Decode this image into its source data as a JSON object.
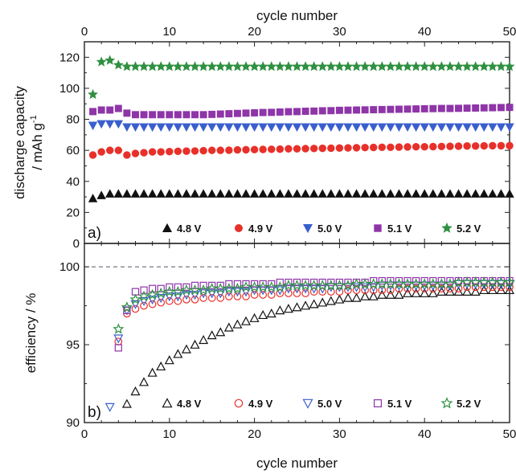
{
  "chart_data": [
    {
      "panel": "a)",
      "type": "scatter",
      "title": "",
      "xlabel_top": "cycle number",
      "ylabel": "discharge capacity",
      "ylabel_unit": "/ mAh g",
      "ylabel_unit_sup": "-1",
      "xlim": [
        0,
        50
      ],
      "ylim": [
        0,
        130
      ],
      "xticks": [
        0,
        10,
        20,
        30,
        40,
        50
      ],
      "yticks": [
        0,
        20,
        40,
        60,
        80,
        100,
        120
      ],
      "legend_position": "bottom",
      "series": [
        {
          "name": "4.8 V",
          "marker": "triangle-up",
          "filled": true,
          "color": "#111111",
          "values": [
            29,
            31,
            32,
            32,
            32,
            32,
            32,
            32,
            32,
            32,
            32,
            32,
            32,
            32,
            32,
            32,
            32,
            32,
            32,
            32,
            32,
            32,
            32,
            32,
            32,
            32,
            32,
            32,
            32,
            32,
            32,
            32,
            32,
            32,
            32,
            32,
            32,
            32,
            32,
            32,
            32,
            32,
            32,
            32,
            32,
            32,
            32,
            32,
            32,
            32
          ]
        },
        {
          "name": "4.9 V",
          "marker": "circle",
          "filled": true,
          "color": "#e8302a",
          "values": [
            57,
            59,
            60,
            60,
            57,
            58,
            58.5,
            59,
            59,
            59.2,
            59.4,
            59.5,
            59.6,
            59.8,
            60,
            60,
            60.1,
            60.3,
            60.4,
            60.5,
            60.6,
            60.7,
            60.8,
            61,
            61,
            61.1,
            61.2,
            61.3,
            61.4,
            61.5,
            61.6,
            61.7,
            61.8,
            61.9,
            62,
            62,
            62.1,
            62.2,
            62.3,
            62.3,
            62.4,
            62.5,
            62.6,
            62.7,
            62.8,
            62.8,
            62.9,
            63,
            63,
            63
          ]
        },
        {
          "name": "5.0 V",
          "marker": "triangle-down",
          "filled": true,
          "color": "#3a5fcd",
          "values": [
            76,
            77,
            77,
            77,
            75,
            75,
            75,
            75,
            75,
            75,
            75,
            75,
            75,
            75,
            75,
            75,
            75,
            75,
            75,
            75,
            75,
            75,
            75,
            75,
            75,
            75,
            75,
            75,
            75,
            75,
            75,
            75,
            75,
            75,
            75,
            75,
            75,
            75,
            75,
            75,
            75,
            75,
            75,
            75,
            75,
            75,
            75,
            75,
            75,
            75
          ]
        },
        {
          "name": "5.1 V",
          "marker": "square",
          "filled": true,
          "color": "#8e35a8",
          "values": [
            85,
            86,
            86,
            87,
            84,
            83,
            83,
            83,
            83,
            83,
            83,
            83,
            83,
            83,
            83.2,
            83.4,
            83.6,
            83.8,
            84,
            84.2,
            84.4,
            84.5,
            84.7,
            84.9,
            85,
            85.2,
            85.3,
            85.5,
            85.6,
            85.8,
            85.9,
            86,
            86.1,
            86.2,
            86.3,
            86.4,
            86.5,
            86.6,
            86.7,
            86.8,
            86.9,
            87,
            87,
            87.1,
            87.2,
            87.3,
            87.4,
            87.5,
            87.6,
            87.7
          ]
        },
        {
          "name": "5.2 V",
          "marker": "star",
          "filled": true,
          "color": "#2e9040",
          "values": [
            96,
            117,
            118,
            115,
            114,
            114,
            114,
            114,
            114,
            114,
            114,
            114,
            114,
            114,
            114,
            114,
            114,
            114,
            114,
            114,
            114,
            114,
            114,
            114,
            114,
            114,
            114,
            114,
            114,
            114,
            114,
            114,
            114,
            114,
            114,
            114,
            114,
            114,
            114,
            114,
            114,
            114,
            114,
            114,
            114,
            114,
            114,
            114,
            114,
            114
          ]
        }
      ]
    },
    {
      "panel": "b)",
      "type": "scatter",
      "title": "",
      "xlabel": "cycle number",
      "ylabel": "efficiency / %",
      "xlim": [
        0,
        50
      ],
      "ylim": [
        90,
        101.5
      ],
      "xticks": [
        0,
        10,
        20,
        30,
        40,
        50
      ],
      "yticks": [
        90,
        95,
        100
      ],
      "reference_line": 100,
      "legend_position": "bottom",
      "series": [
        {
          "name": "4.8 V",
          "marker": "triangle-up",
          "filled": false,
          "color": "#111111",
          "x": [
            5,
            6,
            7,
            8,
            9,
            10,
            11,
            12,
            13,
            14,
            15,
            16,
            17,
            18,
            19,
            20,
            21,
            22,
            23,
            24,
            25,
            26,
            27,
            28,
            29,
            30,
            31,
            32,
            33,
            34,
            35,
            36,
            37,
            38,
            39,
            40,
            41,
            42,
            43,
            44,
            45,
            46,
            47,
            48,
            49,
            50
          ],
          "values": [
            91.2,
            92.0,
            92.6,
            93.2,
            93.6,
            94.0,
            94.4,
            94.7,
            95.0,
            95.3,
            95.6,
            95.8,
            96.1,
            96.3,
            96.5,
            96.7,
            96.9,
            97.0,
            97.2,
            97.3,
            97.4,
            97.5,
            97.6,
            97.7,
            97.8,
            97.9,
            98.0,
            98.0,
            98.1,
            98.1,
            98.2,
            98.2,
            98.2,
            98.3,
            98.3,
            98.3,
            98.3,
            98.4,
            98.4,
            98.4,
            98.4,
            98.4,
            98.5,
            98.5,
            98.5,
            98.5
          ]
        },
        {
          "name": "4.9 V",
          "marker": "circle",
          "filled": false,
          "color": "#e8302a",
          "x": [
            4,
            5,
            6,
            7,
            8,
            9,
            10,
            11,
            12,
            13,
            14,
            15,
            16,
            17,
            18,
            19,
            20,
            21,
            22,
            23,
            24,
            25,
            26,
            27,
            28,
            29,
            30,
            31,
            32,
            33,
            34,
            35,
            36,
            37,
            38,
            39,
            40,
            41,
            42,
            43,
            44,
            45,
            46,
            47,
            48,
            49,
            50
          ],
          "values": [
            95.2,
            97.0,
            97.3,
            97.5,
            97.6,
            97.7,
            97.8,
            97.8,
            97.9,
            97.9,
            98.0,
            98.0,
            98.0,
            98.1,
            98.1,
            98.1,
            98.2,
            98.2,
            98.2,
            98.3,
            98.3,
            98.3,
            98.3,
            98.4,
            98.4,
            98.4,
            98.4,
            98.5,
            98.5,
            98.5,
            98.5,
            98.5,
            98.5,
            98.6,
            98.6,
            98.6,
            98.6,
            98.6,
            98.6,
            98.6,
            98.6,
            98.7,
            98.7,
            98.7,
            98.7,
            98.7,
            98.7
          ]
        },
        {
          "name": "5.0 V",
          "marker": "triangle-down",
          "filled": false,
          "color": "#3a5fcd",
          "x": [
            3,
            4,
            5,
            6,
            7,
            8,
            9,
            10,
            11,
            12,
            13,
            14,
            15,
            16,
            17,
            18,
            19,
            20,
            21,
            22,
            23,
            24,
            25,
            26,
            27,
            28,
            29,
            30,
            31,
            32,
            33,
            34,
            35,
            36,
            37,
            38,
            39,
            40,
            41,
            42,
            43,
            44,
            45,
            46,
            47,
            48,
            49,
            50
          ],
          "values": [
            91.0,
            95.4,
            97.2,
            97.6,
            97.8,
            97.9,
            98.0,
            98.1,
            98.1,
            98.2,
            98.2,
            98.3,
            98.3,
            98.3,
            98.4,
            98.4,
            98.4,
            98.5,
            98.5,
            98.5,
            98.5,
            98.6,
            98.6,
            98.6,
            98.6,
            98.6,
            98.7,
            98.7,
            98.7,
            98.7,
            98.7,
            98.7,
            98.8,
            98.8,
            98.8,
            98.8,
            98.8,
            98.8,
            98.8,
            98.8,
            98.8,
            98.9,
            98.9,
            98.9,
            98.9,
            98.9,
            98.9,
            98.9
          ]
        },
        {
          "name": "5.1 V",
          "marker": "square",
          "filled": false,
          "color": "#8e35a8",
          "x": [
            4,
            5,
            6,
            7,
            8,
            9,
            10,
            11,
            12,
            13,
            14,
            15,
            16,
            17,
            18,
            19,
            20,
            21,
            22,
            23,
            24,
            25,
            26,
            27,
            28,
            29,
            30,
            31,
            32,
            33,
            34,
            35,
            36,
            37,
            38,
            39,
            40,
            41,
            42,
            43,
            44,
            45,
            46,
            47,
            48,
            49,
            50
          ],
          "values": [
            94.8,
            97.2,
            98.4,
            98.5,
            98.6,
            98.6,
            98.7,
            98.7,
            98.7,
            98.8,
            98.8,
            98.8,
            98.8,
            98.9,
            98.9,
            98.9,
            98.9,
            98.9,
            98.9,
            99.0,
            99.0,
            99.0,
            99.0,
            99.0,
            99.0,
            99.0,
            99.0,
            99.0,
            99.0,
            99.0,
            99.1,
            99.1,
            99.1,
            99.1,
            99.1,
            99.1,
            99.1,
            99.1,
            99.1,
            99.1,
            99.1,
            99.1,
            99.1,
            99.1,
            99.1,
            99.1,
            99.1
          ]
        },
        {
          "name": "5.2 V",
          "marker": "star",
          "filled": false,
          "color": "#2e9040",
          "x": [
            4,
            5,
            6,
            7,
            8,
            9,
            10,
            11,
            12,
            13,
            14,
            15,
            16,
            17,
            18,
            19,
            20,
            21,
            22,
            23,
            24,
            25,
            26,
            27,
            28,
            29,
            30,
            31,
            32,
            33,
            34,
            35,
            36,
            37,
            38,
            39,
            40,
            41,
            42,
            43,
            44,
            45,
            46,
            47,
            48,
            49,
            50
          ],
          "values": [
            96.0,
            97.4,
            97.9,
            98.1,
            98.2,
            98.3,
            98.4,
            98.4,
            98.5,
            98.5,
            98.5,
            98.6,
            98.6,
            98.6,
            98.6,
            98.7,
            98.7,
            98.7,
            98.7,
            98.7,
            98.8,
            98.8,
            98.8,
            98.8,
            98.8,
            98.8,
            98.8,
            98.8,
            98.9,
            98.9,
            98.9,
            98.9,
            98.9,
            98.9,
            98.9,
            98.9,
            98.9,
            98.9,
            98.9,
            98.9,
            99.0,
            99.0,
            99.0,
            99.0,
            99.0,
            99.0,
            99.0
          ]
        }
      ]
    }
  ]
}
